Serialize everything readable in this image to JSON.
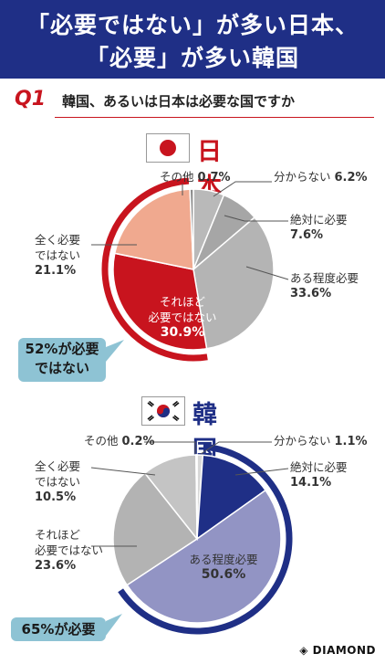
{
  "header": {
    "line1": "「必要ではない」が多い日本、",
    "line2": "「必要」が多い韓国"
  },
  "question": {
    "number": "Q1",
    "text": "韓国、あるいは日本は必要な国ですか"
  },
  "colors": {
    "header_bg": "#1f2f86",
    "japan_accent": "#c8141e",
    "korea_accent": "#1f2f86",
    "callout_bg": "#8ec3d4"
  },
  "chart_data": [
    {
      "type": "pie",
      "title": "日本",
      "flag": "japan-flag-icon",
      "slices": [
        {
          "label": "分からない",
          "value": 6.2,
          "value_text": "6.2%",
          "color": "#b9b9b9"
        },
        {
          "label": "絶対に必要",
          "value": 7.6,
          "value_text": "7.6%",
          "color": "#a6a6a6"
        },
        {
          "label": "ある程度必要",
          "value": 33.6,
          "value_text": "33.6%",
          "color": "#b4b4b4"
        },
        {
          "label": "それほど必要ではない",
          "value": 30.9,
          "value_text": "30.9%",
          "color": "#c8141e"
        },
        {
          "label": "全く必要ではない",
          "value": 21.1,
          "value_text": "21.1%",
          "color": "#f0a98f"
        },
        {
          "label": "その他",
          "value": 0.7,
          "value_text": "0.7%",
          "color": "#8c8c8c"
        }
      ],
      "callout": "52%が必要ではない",
      "callout_line1": "52%が必要",
      "callout_line2": "ではない"
    },
    {
      "type": "pie",
      "title": "韓国",
      "flag": "korea-flag-icon",
      "slices": [
        {
          "label": "分からない",
          "value": 1.1,
          "value_text": "1.1%",
          "color": "#d8d8d8"
        },
        {
          "label": "絶対に必要",
          "value": 14.1,
          "value_text": "14.1%",
          "color": "#1f2f86"
        },
        {
          "label": "ある程度必要",
          "value": 50.6,
          "value_text": "50.6%",
          "color": "#9294c4"
        },
        {
          "label": "それほど必要ではない",
          "value": 23.6,
          "value_text": "23.6%",
          "color": "#b3b3b3"
        },
        {
          "label": "全く必要ではない",
          "value": 10.5,
          "value_text": "10.5%",
          "color": "#c4c4c4"
        },
        {
          "label": "その他",
          "value": 0.2,
          "value_text": "0.2%",
          "color": "#8c8c8c"
        }
      ],
      "callout": "65%が必要"
    }
  ],
  "labels": {
    "jp_sonota": "その他",
    "jp_wakaranai": "分からない",
    "jp_zettai": "絶対に必要",
    "jp_aruteido": "ある程度必要",
    "jp_sorehodo_1": "それほど",
    "jp_sorehodo_2": "必要ではない",
    "jp_mattaku_1": "全く必要",
    "jp_mattaku_2": "ではない",
    "kr_sonota": "その他",
    "kr_wakaranai": "分からない",
    "kr_zettai": "絶対に必要",
    "kr_aruteido": "ある程度必要",
    "kr_sorehodo_1": "それほど",
    "kr_sorehodo_2": "必要ではない",
    "kr_mattaku_1": "全く必要",
    "kr_mattaku_2": "ではない"
  },
  "brand": "DIAMOND"
}
